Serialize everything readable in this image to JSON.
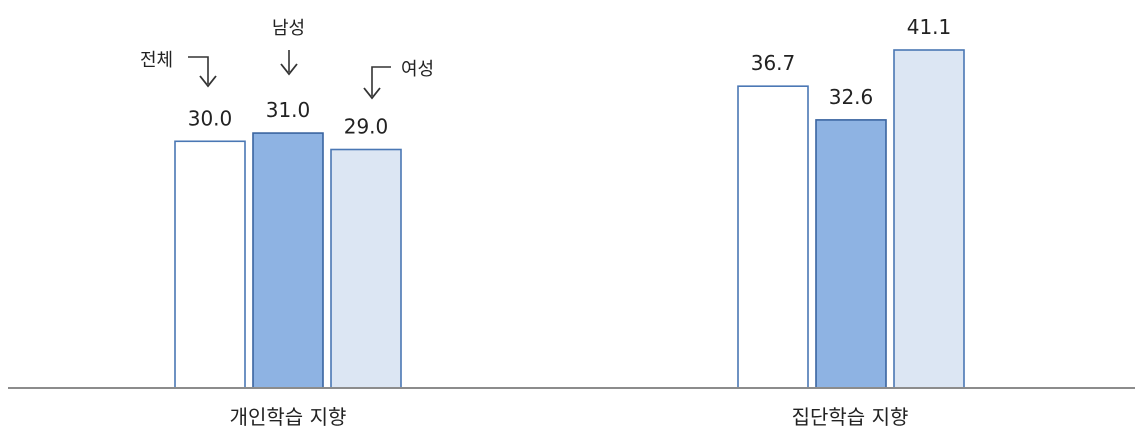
{
  "chart_data": {
    "type": "bar",
    "categories": [
      "개인학습 지향",
      "집단학습 지향"
    ],
    "series": [
      {
        "name": "전체",
        "values": [
          30.0,
          36.7
        ],
        "fill": "#ffffff",
        "stroke": "#4a77b4"
      },
      {
        "name": "남성",
        "values": [
          31.0,
          32.6
        ],
        "fill": "#8eb3e3",
        "stroke": "#3a64a0"
      },
      {
        "name": "여성",
        "values": [
          29.0,
          41.1
        ],
        "fill": "#dce6f3",
        "stroke": "#4a77b4"
      }
    ],
    "value_labels": [
      [
        "30.0",
        "36.7"
      ],
      [
        "31.0",
        "32.6"
      ],
      [
        "29.0",
        "41.1"
      ]
    ],
    "ylim": [
      0,
      41.1
    ],
    "grid": false,
    "legend": "annotations-with-arrows-over-first-group",
    "baseline_color": "#8c8c8c"
  }
}
